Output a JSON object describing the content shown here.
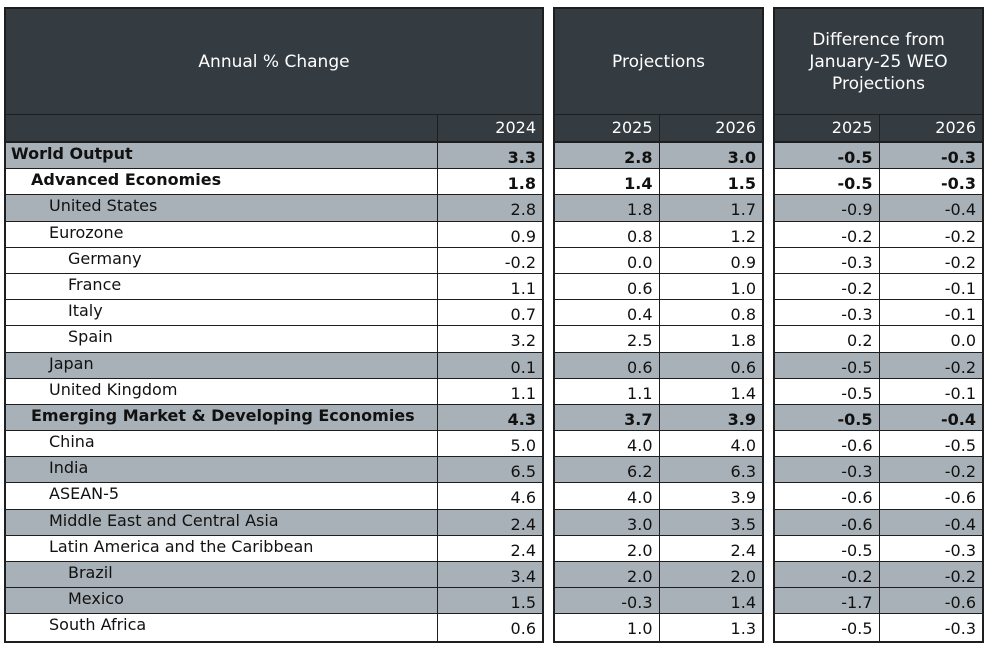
{
  "chart_data": {
    "type": "table",
    "headers": {
      "annual": "Annual % Change",
      "projections": "Projections",
      "difference": "Difference from\nJanuary-25 WEO\nProjections"
    },
    "columns": {
      "actual": [
        "2024"
      ],
      "projections": [
        "2025",
        "2026"
      ],
      "difference": [
        "2025",
        "2026"
      ]
    },
    "rows": [
      {
        "label": "World Output",
        "level": 0,
        "shaded": true,
        "bold": true,
        "v2024": "3.3",
        "p2025": "2.8",
        "p2026": "3.0",
        "d2025": "-0.5",
        "d2026": "-0.3"
      },
      {
        "label": "Advanced Economies",
        "level": 1,
        "shaded": false,
        "bold": true,
        "v2024": "1.8",
        "p2025": "1.4",
        "p2026": "1.5",
        "d2025": "-0.5",
        "d2026": "-0.3"
      },
      {
        "label": "United States",
        "level": 2,
        "shaded": true,
        "bold": false,
        "v2024": "2.8",
        "p2025": "1.8",
        "p2026": "1.7",
        "d2025": "-0.9",
        "d2026": "-0.4"
      },
      {
        "label": "Eurozone",
        "level": 2,
        "shaded": false,
        "bold": false,
        "v2024": "0.9",
        "p2025": "0.8",
        "p2026": "1.2",
        "d2025": "-0.2",
        "d2026": "-0.2"
      },
      {
        "label": "Germany",
        "level": 3,
        "shaded": false,
        "bold": false,
        "v2024": "-0.2",
        "p2025": "0.0",
        "p2026": "0.9",
        "d2025": "-0.3",
        "d2026": "-0.2"
      },
      {
        "label": "France",
        "level": 3,
        "shaded": false,
        "bold": false,
        "v2024": "1.1",
        "p2025": "0.6",
        "p2026": "1.0",
        "d2025": "-0.2",
        "d2026": "-0.1"
      },
      {
        "label": "Italy",
        "level": 3,
        "shaded": false,
        "bold": false,
        "v2024": "0.7",
        "p2025": "0.4",
        "p2026": "0.8",
        "d2025": "-0.3",
        "d2026": "-0.1"
      },
      {
        "label": "Spain",
        "level": 3,
        "shaded": false,
        "bold": false,
        "v2024": "3.2",
        "p2025": "2.5",
        "p2026": "1.8",
        "d2025": "0.2",
        "d2026": "0.0"
      },
      {
        "label": "Japan",
        "level": 2,
        "shaded": true,
        "bold": false,
        "v2024": "0.1",
        "p2025": "0.6",
        "p2026": "0.6",
        "d2025": "-0.5",
        "d2026": "-0.2"
      },
      {
        "label": "United Kingdom",
        "level": 2,
        "shaded": false,
        "bold": false,
        "v2024": "1.1",
        "p2025": "1.1",
        "p2026": "1.4",
        "d2025": "-0.5",
        "d2026": "-0.1"
      },
      {
        "label": "Emerging Market & Developing Economies",
        "level": 1,
        "shaded": true,
        "bold": true,
        "v2024": "4.3",
        "p2025": "3.7",
        "p2026": "3.9",
        "d2025": "-0.5",
        "d2026": "-0.4"
      },
      {
        "label": "China",
        "level": 2,
        "shaded": false,
        "bold": false,
        "v2024": "5.0",
        "p2025": "4.0",
        "p2026": "4.0",
        "d2025": "-0.6",
        "d2026": "-0.5"
      },
      {
        "label": "India",
        "level": 2,
        "shaded": true,
        "bold": false,
        "v2024": "6.5",
        "p2025": "6.2",
        "p2026": "6.3",
        "d2025": "-0.3",
        "d2026": "-0.2"
      },
      {
        "label": "ASEAN-5",
        "level": 2,
        "shaded": false,
        "bold": false,
        "v2024": "4.6",
        "p2025": "4.0",
        "p2026": "3.9",
        "d2025": "-0.6",
        "d2026": "-0.6"
      },
      {
        "label": "Middle East and Central Asia",
        "level": 2,
        "shaded": true,
        "bold": false,
        "v2024": "2.4",
        "p2025": "3.0",
        "p2026": "3.5",
        "d2025": "-0.6",
        "d2026": "-0.4"
      },
      {
        "label": "Latin America and the Caribbean",
        "level": 2,
        "shaded": false,
        "bold": false,
        "v2024": "2.4",
        "p2025": "2.0",
        "p2026": "2.4",
        "d2025": "-0.5",
        "d2026": "-0.3"
      },
      {
        "label": "Brazil",
        "level": 3,
        "shaded": true,
        "bold": false,
        "v2024": "3.4",
        "p2025": "2.0",
        "p2026": "2.0",
        "d2025": "-0.2",
        "d2026": "-0.2"
      },
      {
        "label": "Mexico",
        "level": 3,
        "shaded": true,
        "bold": false,
        "v2024": "1.5",
        "p2025": "-0.3",
        "p2026": "1.4",
        "d2025": "-1.7",
        "d2026": "-0.6"
      },
      {
        "label": "South Africa",
        "level": 2,
        "shaded": false,
        "bold": false,
        "v2024": "0.6",
        "p2025": "1.0",
        "p2026": "1.3",
        "d2025": "-0.5",
        "d2026": "-0.3"
      }
    ]
  },
  "colors": {
    "header_bg": "#343b41",
    "shaded_row": "#a8b1b7",
    "border": "#1e1e1e"
  }
}
